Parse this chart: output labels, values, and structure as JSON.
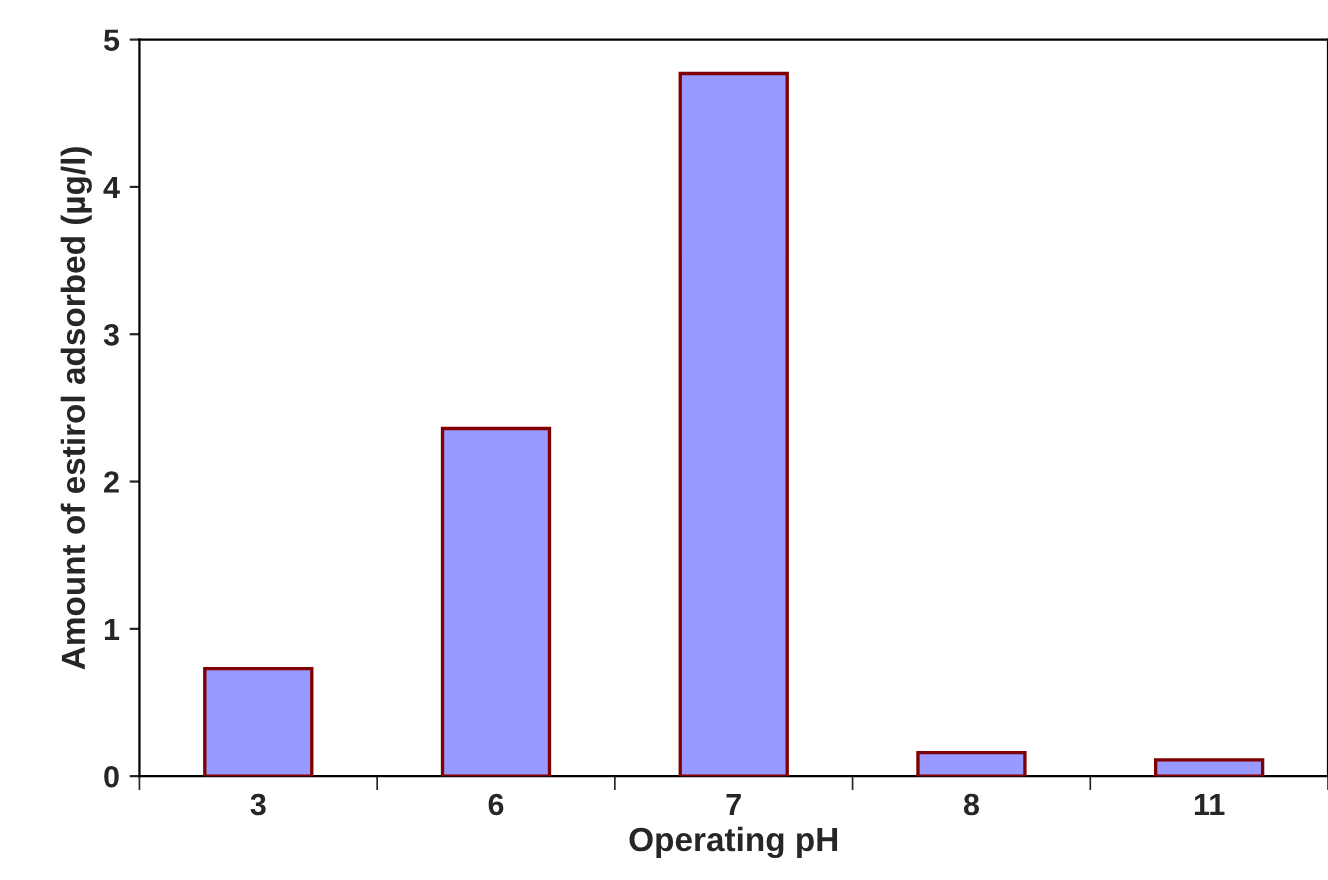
{
  "chart_data": {
    "type": "bar",
    "xlabel": "Operating pH",
    "ylabel": "Amount of estirol adsorbed (µg/l)",
    "categories": [
      "3",
      "6",
      "7",
      "8",
      "11"
    ],
    "values": [
      0.73,
      2.36,
      4.77,
      0.16,
      0.11
    ],
    "color": "#9999ff",
    "ylim": [
      0,
      5
    ],
    "yticks": [
      0,
      1,
      2,
      3,
      4,
      5
    ],
    "grid": false,
    "legend": false
  }
}
